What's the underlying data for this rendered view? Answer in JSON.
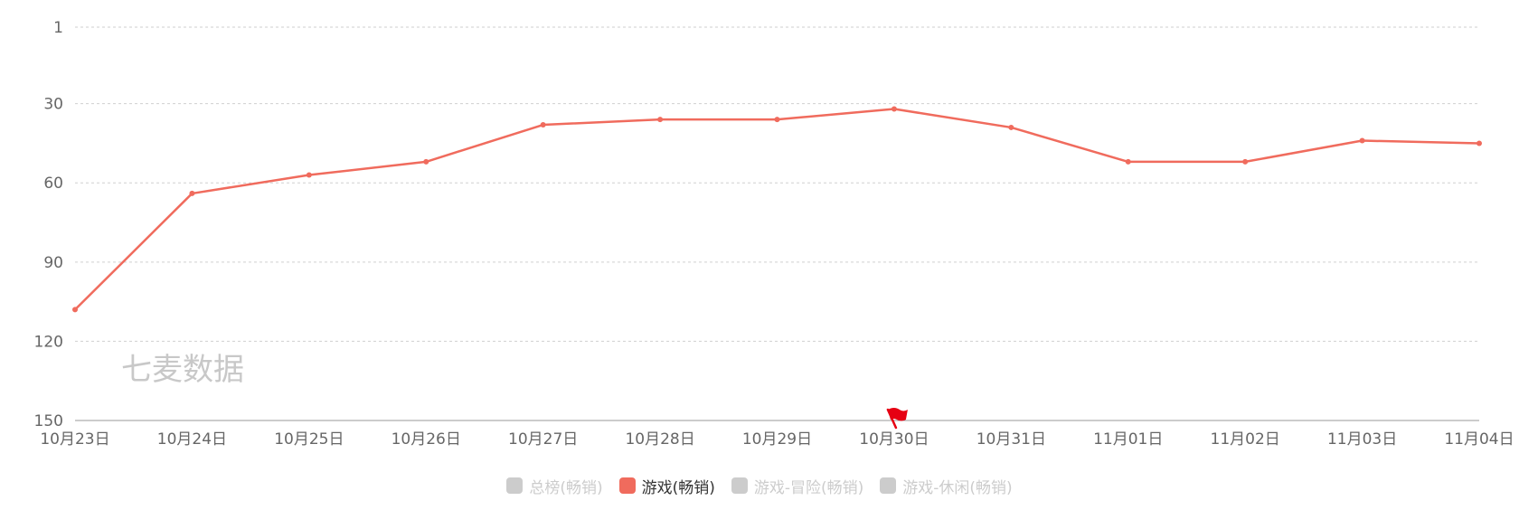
{
  "chart_data": {
    "type": "line",
    "categories": [
      "10月23日",
      "10月24日",
      "10月25日",
      "10月26日",
      "10月27日",
      "10月28日",
      "10月29日",
      "10月30日",
      "10月31日",
      "11月01日",
      "11月02日",
      "11月03日",
      "11月04日"
    ],
    "series": [
      {
        "name": "游戏(畅销)",
        "values": [
          108,
          64,
          57,
          52,
          38,
          36,
          36,
          32,
          39,
          52,
          52,
          44,
          45
        ]
      }
    ],
    "y_ticks": [
      1,
      30,
      60,
      90,
      120,
      150
    ],
    "ylim": [
      1,
      150
    ],
    "y_inverted": true,
    "grid": true,
    "legend_position": "bottom",
    "marker_icon": "flag-icon",
    "marker_category": "10月30日",
    "watermark": "七麦数据",
    "series_color": "#f06b5d",
    "flag_color": "#e60012"
  },
  "legend": [
    {
      "label": "总榜(畅销)",
      "active": false
    },
    {
      "label": "游戏(畅销)",
      "active": true,
      "color": "#f06b5d"
    },
    {
      "label": "游戏-冒险(畅销)",
      "active": false
    },
    {
      "label": "游戏-休闲(畅销)",
      "active": false
    }
  ]
}
